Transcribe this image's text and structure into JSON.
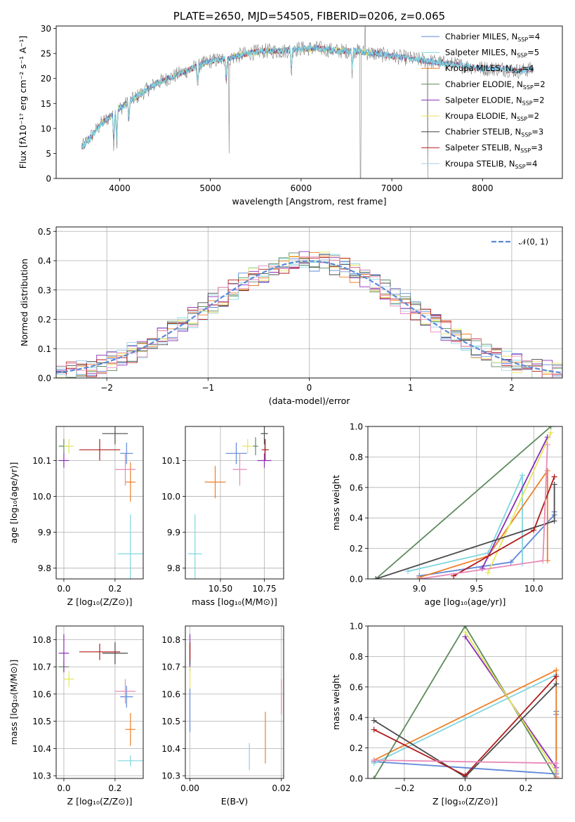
{
  "figure": {
    "title": "PLATE=2650, MJD=54505, FIBERID=0206, z=0.065"
  },
  "colors": {
    "Chabrier MILES": "#5e88d8",
    "Salpeter MILES": "#7fd6df",
    "Kroupa MILES": "#ef7f27",
    "Chabrier ELODIE": "#5e8a5e",
    "Salpeter ELODIE": "#8a2fb8",
    "Kroupa ELODIE": "#e4e65a",
    "Chabrier STELIB": "#4a4a4a",
    "Salpeter STELIB": "#b21b1b",
    "Kroupa STELIB": "#a8d3ea",
    "extra": "#e88ab8",
    "normal": "#5b8ad6"
  },
  "chart_data": [
    {
      "id": "spectrum",
      "type": "line",
      "title": "PLATE=2650, MJD=54505, FIBERID=0206, z=0.065",
      "xlabel": "wavelength [Angstrom, rest frame]",
      "ylabel": "Flux [fλ10⁻¹⁷ erg cm⁻² s⁻¹ A⁻¹]",
      "xlim": [
        3300,
        8880
      ],
      "ylim": [
        0,
        30.5
      ],
      "xticks": [
        "4000",
        "5000",
        "6000",
        "7000",
        "8000"
      ],
      "xtick_values": [
        4000,
        5000,
        6000,
        7000,
        8000
      ],
      "yticks": [
        "0",
        "5",
        "10",
        "15",
        "20",
        "25",
        "30"
      ],
      "ytick_values": [
        0,
        5,
        10,
        15,
        20,
        25,
        30
      ],
      "legend_position": "top-right",
      "data_points": {
        "x": [
          3600,
          3800,
          4000,
          4200,
          4400,
          4600,
          4800,
          5000,
          5200,
          5400,
          5600,
          5800,
          6000,
          6200,
          6400,
          6600,
          6800,
          7000,
          7200,
          7400,
          7600,
          7800,
          8000,
          8200,
          8400,
          8600
        ],
        "y": [
          6.5,
          11.0,
          14.0,
          16.5,
          19.0,
          20.5,
          22.0,
          23.5,
          24.0,
          25.0,
          25.5,
          25.5,
          26.0,
          26.0,
          25.5,
          25.5,
          25.0,
          24.5,
          24.0,
          23.5,
          23.0,
          22.5,
          22.0,
          22.0,
          21.5,
          22.0
        ]
      },
      "observed_color": "#808080",
      "series": [
        {
          "label": "Chabrier MILES, N",
          "sub": "SSP",
          "suffix": "=4"
        },
        {
          "label": "Salpeter MILES, N",
          "sub": "SSP",
          "suffix": "=5"
        },
        {
          "label": "Kroupa MILES, N",
          "sub": "SSP",
          "suffix": "=4"
        },
        {
          "label": "Chabrier ELODIE, N",
          "sub": "SSP",
          "suffix": "=2"
        },
        {
          "label": "Salpeter ELODIE, N",
          "sub": "SSP",
          "suffix": "=2"
        },
        {
          "label": "Kroupa ELODIE, N",
          "sub": "SSP",
          "suffix": "=2"
        },
        {
          "label": "Chabrier STELIB, N",
          "sub": "SSP",
          "suffix": "=3"
        },
        {
          "label": "Salpeter STELIB, N",
          "sub": "SSP",
          "suffix": "=3"
        },
        {
          "label": "Kroupa STELIB, N",
          "sub": "SSP",
          "suffix": "=4"
        }
      ]
    },
    {
      "id": "residuals",
      "type": "histogram",
      "xlabel": "(data-model)/error",
      "ylabel": "Normed distribution",
      "xlim": [
        -2.5,
        2.5
      ],
      "ylim": [
        0,
        0.515
      ],
      "xticks": [
        "−2",
        "−1",
        "0",
        "1",
        "2"
      ],
      "xtick_values": [
        -2,
        -1,
        0,
        1,
        2
      ],
      "yticks": [
        "0.0",
        "0.1",
        "0.2",
        "0.3",
        "0.4",
        "0.5"
      ],
      "ytick_values": [
        0,
        0.1,
        0.2,
        0.3,
        0.4,
        0.5
      ],
      "grid": true,
      "legend_position": "top-right",
      "normal_curve": {
        "label": "𝒩(0, 1)",
        "mean": 0,
        "sigma": 1
      },
      "bin_width": 0.1,
      "bins_start": -2.5
    },
    {
      "id": "age-vs-Z",
      "type": "errorbar",
      "xlabel": "Z [log₁₀(Z/Z⊙)]",
      "ylabel": "age  [log₁₀(age/yr)]",
      "xlim": [
        -0.03,
        0.31
      ],
      "ylim": [
        9.77,
        10.195
      ],
      "xticks": [
        "0.0",
        "0.2"
      ],
      "xtick_values": [
        0.0,
        0.2
      ],
      "yticks": [
        "9.8",
        "9.9",
        "10.0",
        "10.1"
      ],
      "ytick_values": [
        9.8,
        9.9,
        10.0,
        10.1
      ],
      "points": [
        {
          "name": "Chabrier MILES",
          "x": 0.245,
          "y": 10.12,
          "xerr": 0.025,
          "yerr": 0.03
        },
        {
          "name": "Salpeter MILES",
          "x": 0.26,
          "y": 9.84,
          "xerr": 0.05,
          "yerr": 0.11
        },
        {
          "name": "Kroupa MILES",
          "x": 0.26,
          "y": 10.04,
          "xerr": 0.02,
          "yerr": 0.055
        },
        {
          "name": "Chabrier ELODIE",
          "x": 0.0,
          "y": 10.14,
          "xerr": 0.02,
          "yerr": 0.02
        },
        {
          "name": "Salpeter ELODIE",
          "x": 0.0,
          "y": 10.1,
          "xerr": 0.02,
          "yerr": 0.02
        },
        {
          "name": "Kroupa ELODIE",
          "x": 0.02,
          "y": 10.14,
          "xerr": 0.02,
          "yerr": 0.02
        },
        {
          "name": "Chabrier STELIB",
          "x": 0.2,
          "y": 10.175,
          "xerr": 0.05,
          "yerr": 0.03
        },
        {
          "name": "Salpeter STELIB",
          "x": 0.14,
          "y": 10.13,
          "xerr": 0.08,
          "yerr": 0.03
        },
        {
          "name": "extra",
          "x": 0.24,
          "y": 10.075,
          "xerr": 0.04,
          "yerr": 0.045
        }
      ]
    },
    {
      "id": "age-vs-mass",
      "type": "errorbar",
      "xlabel": "mass [log₁₀(M/M⊙)]",
      "ylabel": "",
      "xlim": [
        10.3,
        10.86
      ],
      "ylim": [
        9.77,
        10.195
      ],
      "xticks": [
        "10.50",
        "10.75"
      ],
      "xtick_values": [
        10.5,
        10.75
      ],
      "yticks": [
        "9.8",
        "9.9",
        "10.0",
        "10.1"
      ],
      "ytick_values": [
        9.8,
        9.9,
        10.0,
        10.1
      ],
      "points": [
        {
          "name": "Chabrier MILES",
          "x": 10.59,
          "y": 10.12,
          "xerr": 0.06,
          "yerr": 0.03
        },
        {
          "name": "Salpeter MILES",
          "x": 10.355,
          "y": 9.84,
          "xerr": 0.04,
          "yerr": 0.11
        },
        {
          "name": "Kroupa MILES",
          "x": 10.47,
          "y": 10.04,
          "xerr": 0.06,
          "yerr": 0.045
        },
        {
          "name": "Chabrier ELODIE",
          "x": 10.7,
          "y": 10.14,
          "xerr": 0.015,
          "yerr": 0.025
        },
        {
          "name": "Salpeter ELODIE",
          "x": 10.75,
          "y": 10.1,
          "xerr": 0.04,
          "yerr": 0.02
        },
        {
          "name": "Kroupa ELODIE",
          "x": 10.655,
          "y": 10.14,
          "xerr": 0.03,
          "yerr": 0.02
        },
        {
          "name": "Chabrier STELIB",
          "x": 10.75,
          "y": 10.175,
          "xerr": 0.02,
          "yerr": 0.03
        },
        {
          "name": "Salpeter STELIB",
          "x": 10.755,
          "y": 10.13,
          "xerr": 0.02,
          "yerr": 0.03
        },
        {
          "name": "extra",
          "x": 10.61,
          "y": 10.075,
          "xerr": 0.04,
          "yerr": 0.045
        }
      ]
    },
    {
      "id": "weight-vs-age",
      "type": "line",
      "xlabel": "age  [log₁₀(age/yr)]",
      "ylabel": "mass weight",
      "xlim": [
        8.55,
        10.25
      ],
      "ylim": [
        0,
        1
      ],
      "xticks": [
        "9.0",
        "9.5",
        "10.0"
      ],
      "xtick_values": [
        9.0,
        9.5,
        10.0
      ],
      "yticks": [
        "0.0",
        "0.2",
        "0.4",
        "0.6",
        "0.8",
        "1.0"
      ],
      "ytick_values": [
        0,
        0.2,
        0.4,
        0.6,
        0.8,
        1.0
      ],
      "grid": true,
      "series": [
        {
          "name": "Chabrier MILES",
          "x": [
            9.0,
            9.8,
            10.18,
            10.18
          ],
          "y": [
            0.02,
            0.11,
            0.42,
            0.44
          ]
        },
        {
          "name": "Salpeter MILES",
          "x": [
            8.9,
            9.6,
            9.9,
            9.9
          ],
          "y": [
            0.05,
            0.17,
            0.68,
            0.1
          ]
        },
        {
          "name": "Kroupa MILES",
          "x": [
            9.0,
            9.6,
            10.12,
            10.12
          ],
          "y": [
            0.01,
            0.15,
            0.71,
            0.12
          ]
        },
        {
          "name": "Chabrier ELODIE",
          "x": [
            8.62,
            10.15
          ],
          "y": [
            0.0,
            1.0
          ]
        },
        {
          "name": "Salpeter ELODIE",
          "x": [
            9.55,
            10.12
          ],
          "y": [
            0.07,
            0.93
          ]
        },
        {
          "name": "Kroupa ELODIE",
          "x": [
            9.6,
            10.15
          ],
          "y": [
            0.04,
            0.96
          ]
        },
        {
          "name": "Chabrier STELIB",
          "x": [
            8.62,
            10.18,
            10.18
          ],
          "y": [
            0.0,
            0.38,
            0.62
          ]
        },
        {
          "name": "Salpeter STELIB",
          "x": [
            9.3,
            10.0,
            10.18
          ],
          "y": [
            0.02,
            0.32,
            0.67
          ]
        },
        {
          "name": "extra",
          "x": [
            9.0,
            10.08,
            10.12
          ],
          "y": [
            0.0,
            0.12,
            0.88
          ]
        }
      ]
    },
    {
      "id": "mass-vs-Z",
      "type": "errorbar",
      "xlabel": "Z [log₁₀(Z/Z⊙)]",
      "ylabel": "mass [log₁₀(M/M⊙)]",
      "xlim": [
        -0.03,
        0.31
      ],
      "ylim": [
        10.29,
        10.85
      ],
      "xticks": [
        "0.0",
        "0.2"
      ],
      "xtick_values": [
        0.0,
        0.2
      ],
      "yticks": [
        "10.3",
        "10.4",
        "10.5",
        "10.6",
        "10.7",
        "10.8"
      ],
      "ytick_values": [
        10.3,
        10.4,
        10.5,
        10.6,
        10.7,
        10.8
      ],
      "points": [
        {
          "name": "Chabrier MILES",
          "x": 0.245,
          "y": 10.59,
          "xerr": 0.025,
          "yerr": 0.04
        },
        {
          "name": "Salpeter MILES",
          "x": 0.26,
          "y": 10.355,
          "xerr": 0.05,
          "yerr": 0.02
        },
        {
          "name": "Kroupa MILES",
          "x": 0.26,
          "y": 10.47,
          "xerr": 0.02,
          "yerr": 0.06
        },
        {
          "name": "Chabrier ELODIE",
          "x": 0.0,
          "y": 10.7,
          "xerr": 0.02,
          "yerr": 0.02
        },
        {
          "name": "Salpeter ELODIE",
          "x": 0.0,
          "y": 10.75,
          "xerr": 0.02,
          "yerr": 0.07
        },
        {
          "name": "Kroupa ELODIE",
          "x": 0.02,
          "y": 10.655,
          "xerr": 0.02,
          "yerr": 0.03
        },
        {
          "name": "Chabrier STELIB",
          "x": 0.2,
          "y": 10.75,
          "xerr": 0.05,
          "yerr": 0.04
        },
        {
          "name": "Salpeter STELIB",
          "x": 0.14,
          "y": 10.755,
          "xerr": 0.08,
          "yerr": 0.03
        },
        {
          "name": "extra",
          "x": 0.24,
          "y": 10.61,
          "xerr": 0.04,
          "yerr": 0.045
        }
      ]
    },
    {
      "id": "mass-vs-EBV",
      "type": "errorbar",
      "xlabel": "E(B-V)",
      "ylabel": "",
      "xlim": [
        -0.001,
        0.0205
      ],
      "ylim": [
        10.29,
        10.85
      ],
      "xticks": [
        "0.00",
        "0.02"
      ],
      "xtick_values": [
        0.0,
        0.02
      ],
      "yticks": [
        "10.3",
        "10.4",
        "10.5",
        "10.6",
        "10.7",
        "10.8"
      ],
      "ytick_values": [
        10.3,
        10.4,
        10.5,
        10.6,
        10.7,
        10.8
      ],
      "points": [
        {
          "name": "Chabrier MILES",
          "x": 0.0,
          "y": 10.54,
          "xerr": 0,
          "yerr": 0.08
        },
        {
          "name": "Salpeter MILES",
          "x": 0.013,
          "y": 10.37,
          "xerr": 0,
          "yerr": 0.05
        },
        {
          "name": "Kroupa MILES",
          "x": 0.0165,
          "y": 10.44,
          "xerr": 0,
          "yerr": 0.095
        },
        {
          "name": "Chabrier ELODIE",
          "x": 0.0,
          "y": 10.7,
          "xerr": 0,
          "yerr": 0.02
        },
        {
          "name": "Salpeter ELODIE",
          "x": 0.0,
          "y": 10.76,
          "xerr": 0,
          "yerr": 0.06
        },
        {
          "name": "Kroupa ELODIE",
          "x": 0.0,
          "y": 10.66,
          "xerr": 0,
          "yerr": 0.04
        },
        {
          "name": "Chabrier STELIB",
          "x": 0.0,
          "y": 10.75,
          "xerr": 0,
          "yerr": 0.04
        },
        {
          "name": "Salpeter STELIB",
          "x": 0.0,
          "y": 10.755,
          "xerr": 0,
          "yerr": 0.03
        },
        {
          "name": "extra",
          "x": 0.02,
          "y": 10.59,
          "xerr": 0,
          "yerr": 0.065
        }
      ]
    },
    {
      "id": "weight-vs-Z",
      "type": "line",
      "xlabel": "Z [log₁₀(Z/Z⊙)]",
      "ylabel": "mass weight",
      "xlim": [
        -0.32,
        0.32
      ],
      "ylim": [
        0,
        1
      ],
      "xticks": [
        "−0.2",
        "0.0",
        "0.2"
      ],
      "xtick_values": [
        -0.2,
        0.0,
        0.2
      ],
      "yticks": [
        "0.0",
        "0.2",
        "0.4",
        "0.6",
        "0.8",
        "1.0"
      ],
      "ytick_values": [
        0,
        0.2,
        0.4,
        0.6,
        0.8,
        1.0
      ],
      "grid": true,
      "series": [
        {
          "name": "Chabrier MILES",
          "x": [
            -0.3,
            0.3,
            0.3,
            0.3
          ],
          "y": [
            0.11,
            0.03,
            0.44,
            0.42
          ]
        },
        {
          "name": "Salpeter MILES",
          "x": [
            -0.3,
            0.3,
            0.3
          ],
          "y": [
            0.1,
            0.68,
            0.05
          ]
        },
        {
          "name": "Kroupa MILES",
          "x": [
            -0.3,
            0.3,
            0.3
          ],
          "y": [
            0.12,
            0.71,
            0.01
          ]
        },
        {
          "name": "Chabrier ELODIE",
          "x": [
            -0.3,
            0.0,
            0.3
          ],
          "y": [
            0.0,
            1.0,
            0.0
          ]
        },
        {
          "name": "Salpeter ELODIE",
          "x": [
            0.0,
            0.3
          ],
          "y": [
            0.93,
            0.07
          ]
        },
        {
          "name": "Kroupa ELODIE",
          "x": [
            0.0,
            0.3
          ],
          "y": [
            0.96,
            0.04
          ]
        },
        {
          "name": "Chabrier STELIB",
          "x": [
            -0.3,
            0.0,
            0.3
          ],
          "y": [
            0.38,
            0.01,
            0.62
          ]
        },
        {
          "name": "Salpeter STELIB",
          "x": [
            -0.3,
            0.0,
            0.3
          ],
          "y": [
            0.32,
            0.02,
            0.67
          ]
        },
        {
          "name": "extra",
          "x": [
            -0.3,
            0.3,
            0.3
          ],
          "y": [
            0.12,
            0.1,
            0.0
          ]
        }
      ]
    }
  ]
}
